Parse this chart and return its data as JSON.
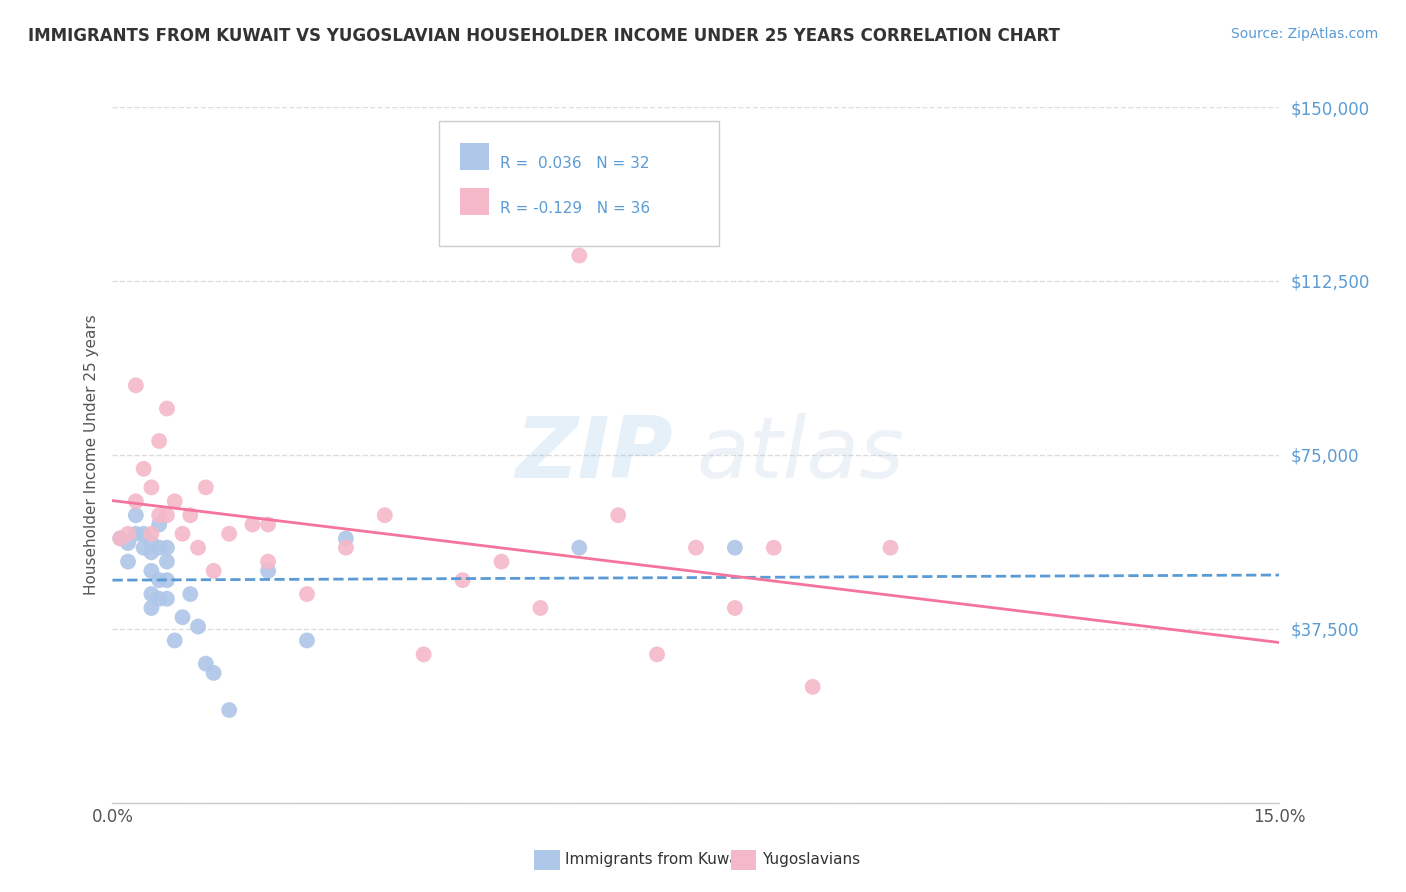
{
  "title": "IMMIGRANTS FROM KUWAIT VS YUGOSLAVIAN HOUSEHOLDER INCOME UNDER 25 YEARS CORRELATION CHART",
  "source_text": "Source: ZipAtlas.com",
  "ylabel": "Householder Income Under 25 years",
  "xlim": [
    0.0,
    0.15
  ],
  "ylim": [
    0,
    150000
  ],
  "xticks": [
    0.0,
    0.05,
    0.1,
    0.15
  ],
  "xticklabels": [
    "0.0%",
    "",
    "",
    "15.0%"
  ],
  "yticks": [
    0,
    37500,
    75000,
    112500,
    150000
  ],
  "yticklabels": [
    "",
    "$37,500",
    "$75,000",
    "$112,500",
    "$150,000"
  ],
  "legend_entries": [
    {
      "label": "Immigrants from Kuwait",
      "R": "0.036",
      "N": "32",
      "color": "#aec6e8"
    },
    {
      "label": "Yugoslavians",
      "R": "-0.129",
      "N": "36",
      "color": "#f4b8c8"
    }
  ],
  "kuwait_color": "#aec6e8",
  "yugoslav_color": "#f4b8c8",
  "kuwait_line_color": "#5b9bd5",
  "yugoslav_line_color": "#f4749c",
  "watermark_zip_color": "#5b9bd5",
  "watermark_atlas_color": "#b0c8e0",
  "background_color": "#ffffff",
  "grid_color": "#dddddd",
  "kuwait_x": [
    0.001,
    0.002,
    0.002,
    0.003,
    0.003,
    0.004,
    0.004,
    0.005,
    0.005,
    0.005,
    0.005,
    0.005,
    0.006,
    0.006,
    0.006,
    0.006,
    0.007,
    0.007,
    0.007,
    0.007,
    0.008,
    0.009,
    0.01,
    0.011,
    0.012,
    0.013,
    0.015,
    0.02,
    0.025,
    0.03,
    0.06,
    0.08
  ],
  "kuwait_y": [
    57000,
    56000,
    52000,
    62000,
    58000,
    58000,
    55000,
    56000,
    54000,
    50000,
    45000,
    42000,
    60000,
    55000,
    48000,
    44000,
    55000,
    52000,
    48000,
    44000,
    35000,
    40000,
    45000,
    38000,
    30000,
    28000,
    20000,
    50000,
    35000,
    57000,
    55000,
    55000
  ],
  "yugoslav_x": [
    0.001,
    0.002,
    0.003,
    0.003,
    0.004,
    0.005,
    0.005,
    0.006,
    0.006,
    0.007,
    0.007,
    0.008,
    0.009,
    0.01,
    0.011,
    0.012,
    0.013,
    0.015,
    0.018,
    0.02,
    0.02,
    0.025,
    0.03,
    0.035,
    0.04,
    0.045,
    0.05,
    0.055,
    0.06,
    0.065,
    0.07,
    0.075,
    0.08,
    0.085,
    0.09,
    0.1
  ],
  "yugoslav_y": [
    57000,
    58000,
    65000,
    90000,
    72000,
    68000,
    58000,
    78000,
    62000,
    85000,
    62000,
    65000,
    58000,
    62000,
    55000,
    68000,
    50000,
    58000,
    60000,
    52000,
    60000,
    45000,
    55000,
    62000,
    32000,
    48000,
    52000,
    42000,
    118000,
    62000,
    32000,
    55000,
    42000,
    55000,
    25000,
    55000
  ]
}
